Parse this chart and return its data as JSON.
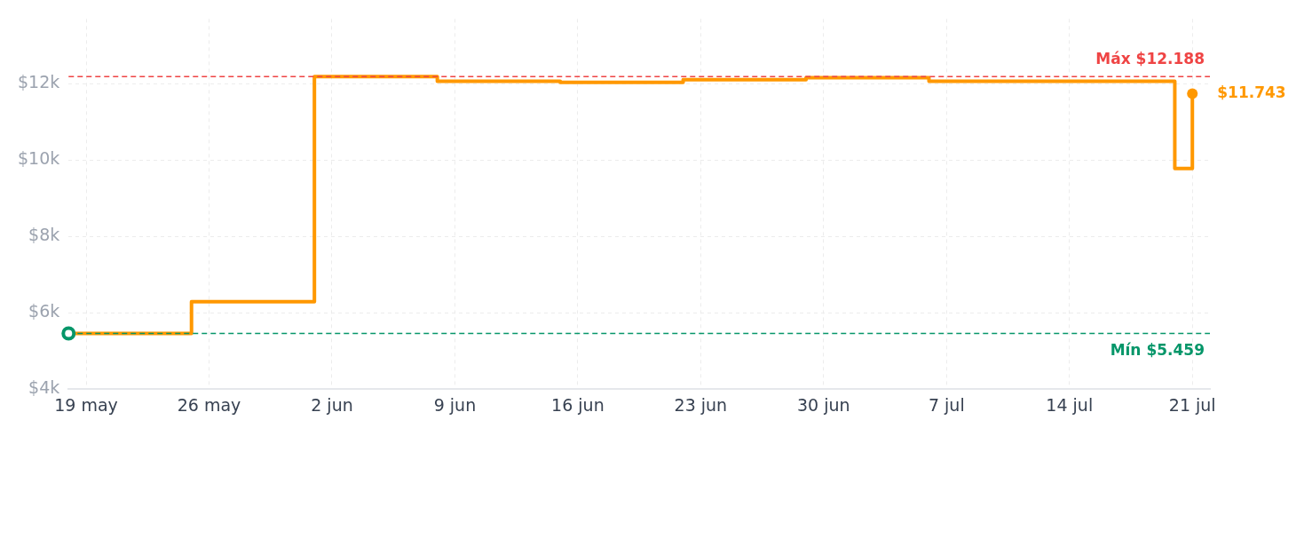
{
  "chart_data": {
    "type": "step",
    "x": [
      "--05-18",
      "--05-25",
      "--06-01",
      "--06-08",
      "--06-15",
      "--06-22",
      "--06-29",
      "--07-06",
      "--07-20",
      "--07-21"
    ],
    "series": [
      {
        "color": "#ff9800",
        "values": [
          5459,
          6290,
          12188,
          12070,
          12040,
          12110,
          12160,
          12070,
          9780,
          11743
        ]
      }
    ],
    "xlim": [
      "--05-18",
      "--07-22"
    ],
    "xticks": [
      {
        "value": "--05-19",
        "label": "19 may"
      },
      {
        "value": "--05-26",
        "label": "26 may"
      },
      {
        "value": "--06-02",
        "label": "2 jun"
      },
      {
        "value": "--06-09",
        "label": "9 jun"
      },
      {
        "value": "--06-16",
        "label": "16 jun"
      },
      {
        "value": "--06-23",
        "label": "23 jun"
      },
      {
        "value": "--06-30",
        "label": "30 jun"
      },
      {
        "value": "--07-07",
        "label": "7 jul"
      },
      {
        "value": "--07-14",
        "label": "14 jul"
      },
      {
        "value": "--07-21",
        "label": "21 jul"
      }
    ],
    "ylim": [
      4000,
      13700
    ],
    "yticks": [
      {
        "value": 4000,
        "label": "$4k"
      },
      {
        "value": 6000,
        "label": "$6k"
      },
      {
        "value": 8000,
        "label": "$8k"
      },
      {
        "value": 10000,
        "label": "$10k"
      },
      {
        "value": 12000,
        "label": "$12k"
      }
    ],
    "grid": true,
    "marker": "none",
    "legend": false,
    "ref_lines": [
      {
        "axis": "y",
        "value": 12188,
        "label": "Máx $12.188",
        "color": "#ef4444",
        "line_style": "dashed"
      },
      {
        "axis": "y",
        "value": 5459,
        "label": "Mín $5.459",
        "color": "#059669",
        "line_style": "dashed"
      }
    ],
    "annotations": [
      {
        "text": "$11.743",
        "x": "--07-21",
        "y": 11743
      }
    ]
  }
}
